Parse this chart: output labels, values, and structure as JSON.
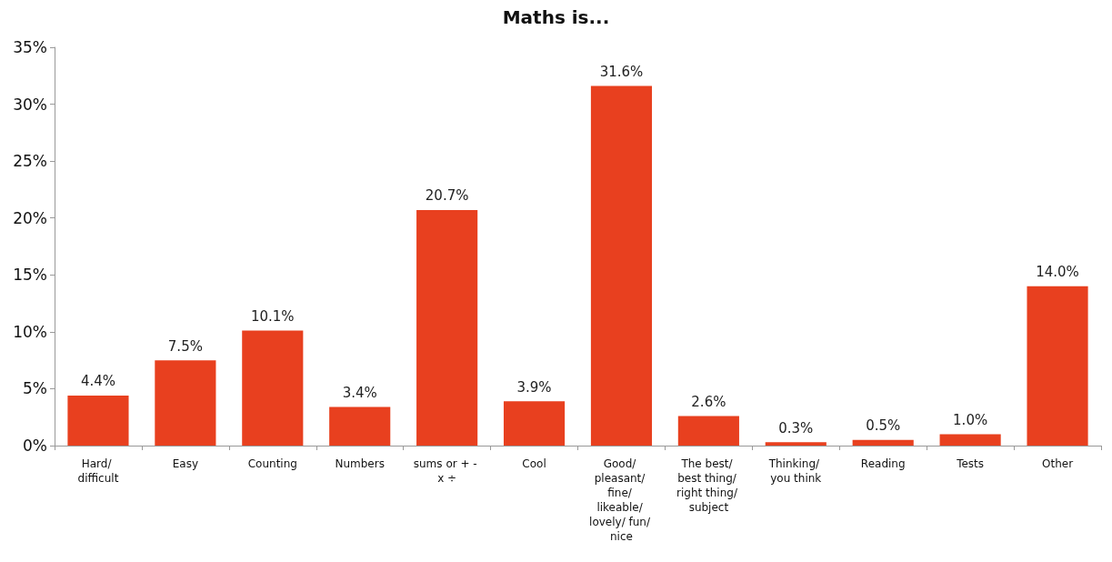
{
  "chart_data": {
    "type": "bar",
    "title": "Maths is...",
    "categories": [
      "Hard/ difficult",
      "Easy",
      "Counting",
      "Numbers",
      "sums or + - x ÷",
      "Cool",
      "Good/ pleasant/ fine/ likeable/ lovely/ fun/ nice",
      "The best/ best thing/ right thing/ subject",
      "Thinking/ you think",
      "Reading",
      "Tests",
      "Other"
    ],
    "values": [
      4.4,
      7.5,
      10.1,
      3.4,
      20.7,
      3.9,
      31.6,
      2.6,
      0.3,
      0.5,
      1.0,
      14.0
    ],
    "value_labels": [
      "4.4%",
      "7.5%",
      "10.1%",
      "3.4%",
      "20.7%",
      "3.9%",
      "31.6%",
      "2.6%",
      "0.3%",
      "0.5%",
      "1.0%",
      "14.0%"
    ],
    "color": "#e8401f",
    "ylim": [
      0,
      35
    ],
    "yticks": [
      {
        "value": 0,
        "label": "0%"
      },
      {
        "value": 5,
        "label": "5%"
      },
      {
        "value": 10,
        "label": "10%"
      },
      {
        "value": 15,
        "label": "15%"
      },
      {
        "value": 20,
        "label": "20%"
      },
      {
        "value": 25,
        "label": "25%"
      },
      {
        "value": 30,
        "label": "30%"
      },
      {
        "value": 35,
        "label": "35%"
      }
    ],
    "grid": false
  }
}
